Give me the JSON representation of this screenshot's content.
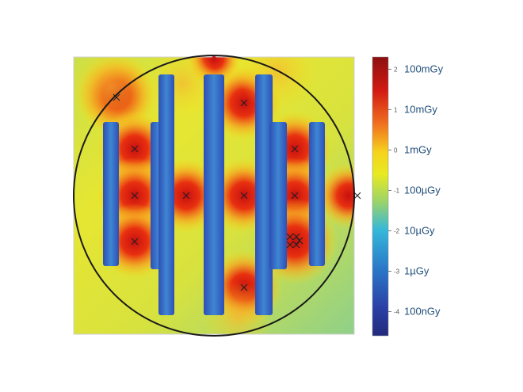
{
  "chart_data": {
    "type": "heatmap",
    "title": "",
    "xlabel": "",
    "ylabel": "",
    "colorbar": {
      "scale": "log10",
      "range": [
        -4.6,
        2.3
      ],
      "ticks": [
        {
          "value": 2,
          "label": "2",
          "unit_label": "100mGy"
        },
        {
          "value": 1,
          "label": "1",
          "unit_label": "10mGy"
        },
        {
          "value": 0,
          "label": "0",
          "unit_label": "1mGy"
        },
        {
          "value": -1,
          "label": "-1",
          "unit_label": "100µGy"
        },
        {
          "value": -2,
          "label": "-2",
          "unit_label": "10µGy"
        },
        {
          "value": -3,
          "label": "-3",
          "unit_label": "1µGy"
        },
        {
          "value": -4,
          "label": "-4",
          "unit_label": "100nGy"
        }
      ]
    },
    "colors": {
      "high": "#c00000",
      "mid": "#f3e91a",
      "low": "#2d3fa6",
      "circle": "#1a1a1a",
      "marker": "#222222"
    }
  }
}
